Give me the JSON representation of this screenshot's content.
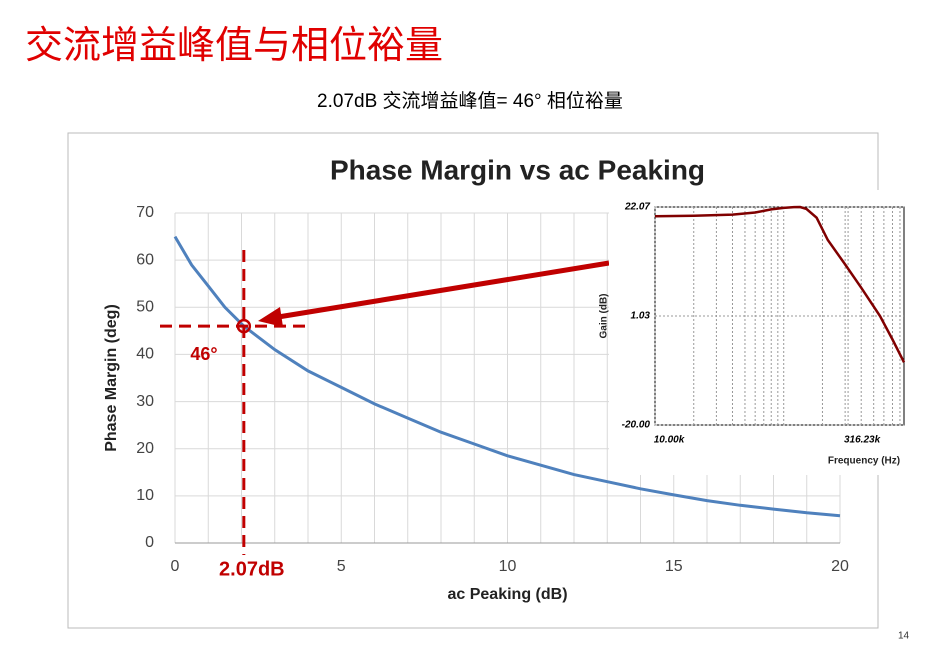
{
  "slide": {
    "title": "交流增益峰值与相位裕量",
    "subtitle": "2.07dB 交流增益峰值= 46° 相位裕量",
    "page_number": "14"
  },
  "chart_data": [
    {
      "type": "line",
      "title": "Phase Margin vs ac Peaking",
      "x_label": "ac Peaking (dB)",
      "y_label": "Phase Margin (deg)",
      "x": [
        0,
        0.5,
        1,
        1.5,
        2.07,
        3,
        4,
        5,
        6,
        7,
        8,
        9,
        10,
        11,
        12,
        13,
        14,
        15,
        16,
        17,
        18,
        19,
        20
      ],
      "values": [
        65,
        59,
        54.5,
        50,
        46,
        41,
        36.5,
        33,
        29.5,
        26.5,
        23.5,
        21,
        18.5,
        16.5,
        14.5,
        13,
        11.5,
        10.2,
        9,
        8,
        7.2,
        6.4,
        5.8
      ],
      "color": "#4f81bd",
      "xlim": [
        0,
        20
      ],
      "ylim": [
        0,
        70
      ],
      "xticks": [
        0,
        5,
        10,
        15,
        20
      ],
      "yticks": [
        0,
        10,
        20,
        30,
        40,
        50,
        60,
        70
      ],
      "xminorticks": [
        1,
        2,
        3,
        4,
        6,
        7,
        8,
        9,
        11,
        12,
        13,
        14,
        16,
        17,
        18,
        19
      ],
      "grid": true,
      "marker": {
        "x": 2.07,
        "y": 46,
        "x_label": "2.07dB",
        "y_label": "46°",
        "color": "#c00000"
      }
    },
    {
      "type": "line",
      "x_label": "Frequency (Hz)",
      "y_label": "Gain (dB)",
      "x_scale": "log",
      "x": [
        10000,
        20000,
        40000,
        60000,
        80000,
        100000,
        120000,
        134000,
        150000,
        180000,
        220000,
        300000,
        400000,
        560000,
        700000,
        860000
      ],
      "values": [
        20.3,
        20.4,
        20.6,
        21.0,
        21.6,
        21.9,
        22.05,
        22.07,
        21.7,
        20,
        15.7,
        11,
        6.5,
        1.03,
        -3.5,
        -7.9
      ],
      "color": "#800000",
      "xlim": [
        10000,
        860000
      ],
      "ylim": [
        -20,
        22.07
      ],
      "xticks": [
        {
          "value": 10000,
          "label": "10.00k"
        },
        {
          "value": 316230,
          "label": "316.23k"
        }
      ],
      "yticks": [
        {
          "value": -20,
          "label": "-20.00"
        },
        {
          "value": 1.035,
          "label": "1.03"
        },
        22.07
      ],
      "xminorticks": [
        20000,
        30000,
        40000,
        50000,
        60000,
        70000,
        80000,
        90000,
        100000,
        200000,
        300000,
        400000,
        500000,
        600000,
        700000,
        800000
      ],
      "grid": true
    }
  ]
}
